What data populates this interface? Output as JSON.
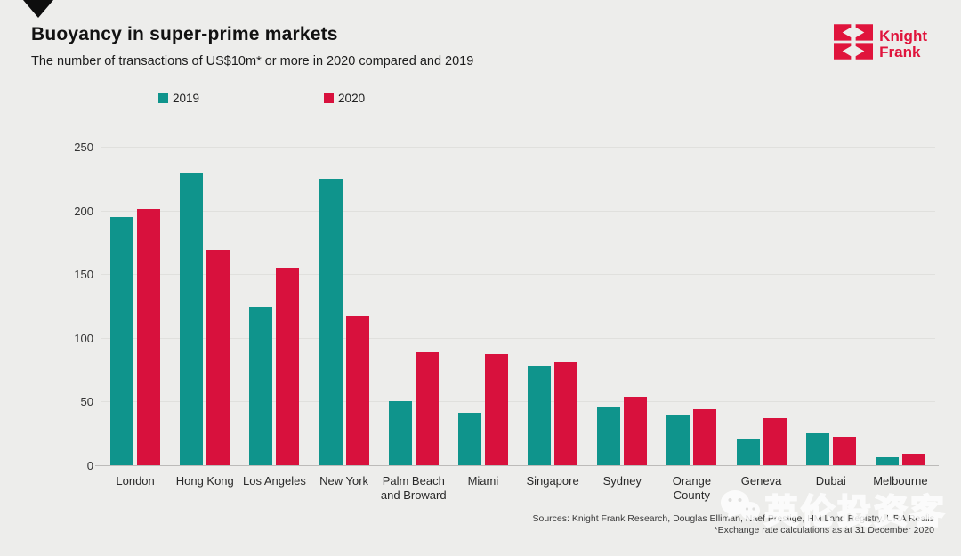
{
  "header": {},
  "logo": {
    "line1": "Knight",
    "line2": "Frank",
    "color": "#e0143c"
  },
  "chart_data": {
    "type": "bar",
    "title": "Buoyancy in super-prime markets",
    "subtitle": "The number of transactions of US$10m* or more in 2020 compared and 2019",
    "categories": [
      "London",
      "Hong Kong",
      "Los Angeles",
      "New York",
      "Palm Beach and Broward",
      "Miami",
      "Singapore",
      "Sydney",
      "Orange County",
      "Geneva",
      "Dubai",
      "Melbourne"
    ],
    "series": [
      {
        "name": "2019",
        "color": "#0f948c",
        "values": [
          195,
          230,
          124,
          225,
          50,
          41,
          78,
          46,
          40,
          21,
          25,
          6
        ]
      },
      {
        "name": "2020",
        "color": "#d8113d",
        "values": [
          201,
          169,
          155,
          117,
          89,
          87,
          81,
          54,
          44,
          37,
          22,
          9
        ]
      }
    ],
    "xlabel": "",
    "ylabel": "",
    "ylim": [
      0,
      250
    ],
    "yticks": [
      0,
      50,
      100,
      150,
      200,
      250
    ],
    "grid": true,
    "legend_position": "top-left"
  },
  "footer": {
    "sources_line1": "Sources: Knight Frank Research, Douglas Elliman, Naef Prestige, HM Land Registry, URA Realis",
    "sources_line2": "*Exchange rate calculations as at 31 December 2020"
  },
  "watermark": {
    "text": "英伦投资客",
    "icon": "wechat-icon"
  }
}
